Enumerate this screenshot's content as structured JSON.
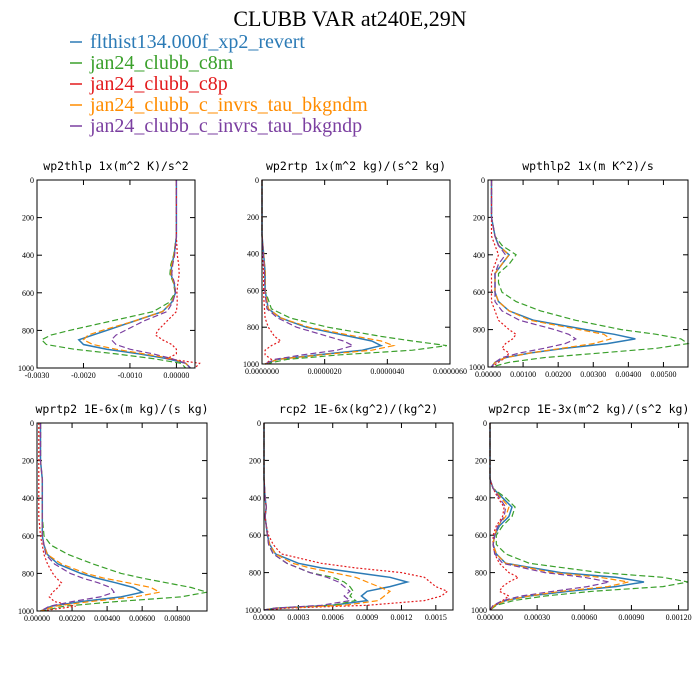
{
  "page_title": "CLUBB VAR at240E,29N",
  "legend": [
    {
      "label": "flthist134.000f_xp2_revert",
      "color": "#2c7bb6"
    },
    {
      "label": "jan24_clubb_c8m",
      "color": "#3aa02b"
    },
    {
      "label": "jan24_clubb_c8p",
      "color": "#e31a1c"
    },
    {
      "label": "jan24_clubb_c_invrs_tau_bkgndm",
      "color": "#ff8c00"
    },
    {
      "label": "jan24_clubb_c_invrs_tau_bkgndp",
      "color": "#7b3fa0"
    }
  ],
  "chart_data": [
    {
      "type": "line",
      "title": "wp2thlp  1x(m^2 K)/s^2",
      "ylim": [
        1000,
        0
      ],
      "yticks": [
        "0",
        "200",
        "400",
        "600",
        "800",
        "1000"
      ],
      "xlim": [
        -0.003,
        0.0004
      ],
      "xticks": [
        -0.003,
        -0.002,
        -0.001,
        0.0
      ],
      "xticklabels": [
        "-0.0030",
        "-0.0020",
        "-0.0010",
        "0.00000"
      ],
      "y": [
        0,
        100,
        200,
        300,
        400,
        450,
        500,
        550,
        600,
        650,
        700,
        750,
        800,
        825,
        850,
        875,
        900,
        925,
        950,
        975,
        1000
      ],
      "series": [
        {
          "values": [
            0,
            0,
            0,
            0,
            -5e-05,
            -0.0001,
            -0.00012,
            -5e-05,
            -2e-05,
            -0.0001,
            -0.0003,
            -0.0009,
            -0.0015,
            -0.0018,
            -0.0021,
            -0.002,
            -0.0015,
            -0.0008,
            -0.0002,
            0.0002,
            0.0003
          ]
        },
        {
          "values": [
            0,
            0,
            0,
            0,
            -6e-05,
            -0.00012,
            -0.00014,
            -6e-05,
            -3e-05,
            -0.00015,
            -0.0005,
            -0.0014,
            -0.0023,
            -0.0027,
            -0.0029,
            -0.0028,
            -0.0022,
            -0.0013,
            -0.0005,
            0.0001,
            0.0002
          ]
        },
        {
          "values": [
            0,
            0,
            0,
            0,
            2e-05,
            5e-05,
            6e-05,
            3e-05,
            1e-05,
            2e-05,
            0.0,
            -0.0002,
            -0.0004,
            -0.00045,
            -0.0003,
            -0.0001,
            0.0,
            0.0,
            -0.0002,
            0.0005,
            0.0004
          ]
        },
        {
          "values": [
            0,
            0,
            0,
            0,
            -5e-05,
            -0.0001,
            -0.00012,
            -5e-05,
            -2e-05,
            -0.0001,
            -0.0003,
            -0.0009,
            -0.0016,
            -0.0019,
            -0.002,
            -0.0018,
            -0.0013,
            -0.0007,
            -0.0001,
            0.0002,
            0.0003
          ]
        },
        {
          "values": [
            0,
            0,
            0,
            0,
            -4e-05,
            -8e-05,
            -0.0001,
            -4e-05,
            -2e-05,
            -8e-05,
            -0.0002,
            -0.0007,
            -0.0011,
            -0.0013,
            -0.0014,
            -0.0013,
            -0.001,
            -0.0005,
            -0.0001,
            0.0002,
            0.0003
          ]
        }
      ]
    },
    {
      "type": "line",
      "title": "wp2rtp  1x(m^2 kg)/(s^2 kg)",
      "ylim": [
        1000,
        0
      ],
      "yticks": [
        "0",
        "200",
        "400",
        "600",
        "800",
        "1000"
      ],
      "xlim": [
        0,
        6e-06
      ],
      "xticks": [
        0,
        2e-06,
        4e-06,
        6e-06
      ],
      "xticklabels": [
        "0.0000000",
        "0.0000020",
        "0.0000040",
        "0.0000060"
      ],
      "y": [
        0,
        100,
        200,
        300,
        400,
        500,
        600,
        650,
        700,
        750,
        800,
        850,
        875,
        900,
        925,
        950,
        975,
        1000
      ],
      "series": [
        {
          "values": [
            0,
            0,
            0,
            0,
            5e-08,
            1e-07,
            1e-07,
            1.5e-07,
            2e-07,
            6e-07,
            1.4e-06,
            2.8e-06,
            3.5e-06,
            3.8e-06,
            3.2e-06,
            1.8e-06,
            5e-07,
            1e-07
          ]
        },
        {
          "values": [
            0,
            0,
            0,
            0,
            5e-08,
            1e-07,
            1e-07,
            2e-07,
            3e-07,
            9e-07,
            2.1e-06,
            3.8e-06,
            4.8e-06,
            5.9e-06,
            4.8e-06,
            2.5e-06,
            8e-07,
            1e-07
          ]
        },
        {
          "values": [
            0,
            0,
            0,
            0,
            2e-08,
            5e-08,
            5e-08,
            6e-08,
            8e-08,
            1e-07,
            2e-07,
            4e-07,
            6e-07,
            3e-07,
            1e-07,
            1e-07,
            3e-07,
            1e-07
          ]
        },
        {
          "values": [
            0,
            0,
            0,
            0,
            5e-08,
            1e-07,
            1e-07,
            1.5e-07,
            2e-07,
            6e-07,
            1.5e-06,
            3e-06,
            3.8e-06,
            4.2e-06,
            3.5e-06,
            1.9e-06,
            5e-07,
            1e-07
          ]
        },
        {
          "values": [
            0,
            0,
            0,
            0,
            4e-08,
            8e-08,
            9e-08,
            1.2e-07,
            1.6e-07,
            5e-07,
            1.1e-06,
            2.1e-06,
            2.6e-06,
            2.9e-06,
            2.4e-06,
            1.3e-06,
            4e-07,
            1e-07
          ]
        }
      ]
    },
    {
      "type": "line",
      "title": "wpthlp2  1x(m K^2)/s",
      "ylim": [
        1000,
        0
      ],
      "yticks": [
        "0",
        "200",
        "400",
        "600",
        "800",
        "1000"
      ],
      "xlim": [
        0,
        0.0057
      ],
      "xticks": [
        0,
        0.001,
        0.002,
        0.003,
        0.004,
        0.005
      ],
      "xticklabels": [
        "0.00000",
        "0.00100",
        "0.00200",
        "0.00300",
        "0.00400",
        "0.00500"
      ],
      "y": [
        0,
        100,
        200,
        300,
        350,
        400,
        450,
        500,
        550,
        600,
        650,
        700,
        750,
        800,
        825,
        850,
        875,
        900,
        925,
        950,
        975,
        1000
      ],
      "series": [
        {
          "values": [
            0.0001,
            0.0001,
            0.0001,
            0.0002,
            0.0003,
            0.0006,
            0.0004,
            0.0002,
            0.0002,
            0.0002,
            0.0003,
            0.0006,
            0.0013,
            0.0028,
            0.0036,
            0.0042,
            0.0034,
            0.0022,
            0.0012,
            0.0005,
            0.0002,
            0.0001
          ]
        },
        {
          "values": [
            0.0001,
            0.0001,
            0.0001,
            0.0002,
            0.0004,
            0.0008,
            0.0006,
            0.0003,
            0.0003,
            0.0004,
            0.0008,
            0.0015,
            0.0025,
            0.0038,
            0.0048,
            0.0055,
            0.0057,
            0.0048,
            0.0032,
            0.0016,
            0.0006,
            0.0001
          ]
        },
        {
          "values": [
            0.0001,
            0.0001,
            0.0001,
            0.0001,
            0.0002,
            0.0003,
            0.0002,
            0.0001,
            0.0001,
            0.0001,
            0.0001,
            0.0002,
            0.0003,
            0.0006,
            0.0008,
            0.0007,
            0.0005,
            0.0004,
            0.0006,
            0.0005,
            0.0003,
            0.0001
          ]
        },
        {
          "values": [
            0.0001,
            0.0001,
            0.0001,
            0.0002,
            0.0003,
            0.0006,
            0.0004,
            0.0002,
            0.0002,
            0.0002,
            0.0003,
            0.0006,
            0.0012,
            0.0026,
            0.0033,
            0.0035,
            0.003,
            0.0021,
            0.0012,
            0.0005,
            0.0002,
            0.0001
          ]
        },
        {
          "values": [
            0.0001,
            0.0001,
            0.0001,
            0.0002,
            0.0003,
            0.0005,
            0.0003,
            0.0002,
            0.0002,
            0.0002,
            0.0002,
            0.0004,
            0.0009,
            0.0019,
            0.0023,
            0.0025,
            0.0022,
            0.0016,
            0.0009,
            0.0004,
            0.0002,
            0.0001
          ]
        }
      ]
    },
    {
      "type": "line",
      "title": "wprtp2  1E-6x(m kg)/(s kg)",
      "ylim": [
        1000,
        0
      ],
      "yticks": [
        "0",
        "200",
        "400",
        "600",
        "800",
        "1000"
      ],
      "xlim": [
        0,
        0.0097
      ],
      "xticks": [
        0,
        0.002,
        0.004,
        0.006,
        0.008
      ],
      "xticklabels": [
        "0.00000",
        "0.00200",
        "0.00400",
        "0.00600",
        "0.00800"
      ],
      "y": [
        0,
        100,
        200,
        300,
        400,
        500,
        600,
        650,
        700,
        750,
        800,
        825,
        850,
        875,
        900,
        925,
        950,
        975,
        1000
      ],
      "series": [
        {
          "values": [
            0.0002,
            0.0002,
            0.0002,
            0.0003,
            0.0003,
            0.0003,
            0.0003,
            0.0004,
            0.0006,
            0.0012,
            0.0025,
            0.0034,
            0.0045,
            0.0055,
            0.006,
            0.0048,
            0.0025,
            0.0008,
            0.0002
          ]
        },
        {
          "values": [
            0.0002,
            0.0002,
            0.0002,
            0.0003,
            0.0003,
            0.0003,
            0.0004,
            0.0008,
            0.0018,
            0.0032,
            0.0048,
            0.006,
            0.0074,
            0.0088,
            0.0097,
            0.0082,
            0.0045,
            0.0015,
            0.0003
          ]
        },
        {
          "values": [
            0.0001,
            0.0001,
            0.0001,
            0.0001,
            0.0001,
            0.0001,
            0.0002,
            0.0003,
            0.0004,
            0.0006,
            0.0009,
            0.0011,
            0.0014,
            0.0012,
            0.0009,
            0.0007,
            0.001,
            0.0022,
            0.0002
          ]
        },
        {
          "values": [
            0.0002,
            0.0002,
            0.0002,
            0.0003,
            0.0003,
            0.0003,
            0.0003,
            0.0004,
            0.0006,
            0.0014,
            0.0028,
            0.0038,
            0.0052,
            0.0065,
            0.007,
            0.0056,
            0.003,
            0.001,
            0.0002
          ]
        },
        {
          "values": [
            0.0002,
            0.0002,
            0.0002,
            0.0003,
            0.0003,
            0.0003,
            0.0003,
            0.0004,
            0.0005,
            0.001,
            0.0019,
            0.0026,
            0.0035,
            0.0042,
            0.0044,
            0.0036,
            0.002,
            0.0007,
            0.0002
          ]
        }
      ]
    },
    {
      "type": "line",
      "title": "rcp2  1E-6x(kg^2)/(kg^2)",
      "ylim": [
        1000,
        0
      ],
      "yticks": [
        "0",
        "200",
        "400",
        "600",
        "800",
        "1000"
      ],
      "xlim": [
        0,
        0.00165
      ],
      "xticks": [
        0,
        0.0003,
        0.0006,
        0.0009,
        0.0012,
        0.0015
      ],
      "xticklabels": [
        "0.0000",
        "0.0003",
        "0.0006",
        "0.0009",
        "0.0012",
        "0.0015"
      ],
      "y": [
        0,
        300,
        400,
        450,
        500,
        550,
        600,
        650,
        700,
        750,
        775,
        800,
        825,
        850,
        875,
        900,
        925,
        950,
        975,
        990,
        1000
      ],
      "series": [
        {
          "values": [
            0,
            0,
            1e-05,
            2e-05,
            1e-05,
            2e-05,
            3e-05,
            5e-05,
            0.0001,
            0.0003,
            0.0005,
            0.0008,
            0.0011,
            0.00125,
            0.0011,
            0.0009,
            0.00085,
            0.0009,
            0.0006,
            0.0001,
            0
          ]
        },
        {
          "values": [
            0,
            0,
            1e-05,
            2e-05,
            1e-05,
            2e-05,
            3e-05,
            4e-05,
            8e-05,
            0.0002,
            0.0003,
            0.0004,
            0.0006,
            0.0007,
            0.00075,
            0.00078,
            0.00075,
            0.0008,
            0.0006,
            0.0001,
            0
          ]
        },
        {
          "values": [
            0,
            0,
            1e-05,
            2e-05,
            1e-05,
            2e-05,
            4e-05,
            8e-05,
            0.00015,
            0.0005,
            0.0008,
            0.0012,
            0.0014,
            0.00145,
            0.0015,
            0.0016,
            0.00155,
            0.0014,
            0.0009,
            0.0002,
            0
          ]
        },
        {
          "values": [
            0,
            0,
            1e-05,
            2e-05,
            1e-05,
            2e-05,
            3e-05,
            5e-05,
            0.0001,
            0.00025,
            0.0004,
            0.0006,
            0.0008,
            0.0009,
            0.001,
            0.0011,
            0.00105,
            0.001,
            0.0007,
            0.0001,
            0
          ]
        },
        {
          "values": [
            0,
            0,
            1e-05,
            2e-05,
            1e-05,
            2e-05,
            3e-05,
            4e-05,
            8e-05,
            0.0002,
            0.0003,
            0.0004,
            0.00055,
            0.00065,
            0.0007,
            0.00075,
            0.0007,
            0.00075,
            0.0005,
            0.0001,
            0
          ]
        }
      ]
    },
    {
      "type": "line",
      "title": "wp2rcp  1E-3x(m^2 kg)/(s^2 kg)",
      "ylim": [
        1000,
        0
      ],
      "yticks": [
        "0",
        "200",
        "400",
        "600",
        "800",
        "1000"
      ],
      "xlim": [
        0,
        0.00126
      ],
      "xticks": [
        0,
        0.0003,
        0.0006,
        0.0009,
        0.0012
      ],
      "xticklabels": [
        "0.00000",
        "0.00030",
        "0.00060",
        "0.00090",
        "0.00120"
      ],
      "y": [
        0,
        300,
        350,
        400,
        450,
        500,
        550,
        600,
        650,
        700,
        750,
        800,
        825,
        850,
        875,
        900,
        925,
        950,
        975,
        1000
      ],
      "series": [
        {
          "values": [
            0,
            0,
            2e-05,
            8e-05,
            0.00014,
            0.00012,
            6e-05,
            3e-05,
            2e-05,
            4e-05,
            0.0001,
            0.00045,
            0.0008,
            0.00098,
            0.0008,
            0.0005,
            0.00025,
            0.0001,
            3e-05,
            0
          ]
        },
        {
          "values": [
            0,
            0,
            2e-05,
            0.0001,
            0.00016,
            0.00014,
            8e-05,
            4e-05,
            4e-05,
            0.0001,
            0.00025,
            0.0007,
            0.0011,
            0.00126,
            0.0011,
            0.00065,
            0.00035,
            0.00015,
            4e-05,
            0
          ]
        },
        {
          "values": [
            0,
            0,
            2e-05,
            5e-05,
            9e-05,
            8e-05,
            4e-05,
            2e-05,
            2e-05,
            3e-05,
            6e-05,
            0.00012,
            0.00018,
            0.00012,
            8e-05,
            6e-05,
            0.00012,
            8e-05,
            3e-05,
            0
          ]
        },
        {
          "values": [
            0,
            0,
            2e-05,
            7e-05,
            0.00012,
            0.0001,
            5e-05,
            3e-05,
            2e-05,
            4e-05,
            0.0001,
            0.0004,
            0.0007,
            0.00088,
            0.00075,
            0.00045,
            0.00025,
            0.0001,
            3e-05,
            0
          ]
        },
        {
          "values": [
            0,
            0,
            2e-05,
            6e-05,
            0.0001,
            9e-05,
            5e-05,
            3e-05,
            2e-05,
            3e-05,
            8e-05,
            0.00035,
            0.0006,
            0.00076,
            0.00062,
            0.0004,
            0.0002,
            8e-05,
            2e-05,
            0
          ]
        }
      ]
    }
  ]
}
